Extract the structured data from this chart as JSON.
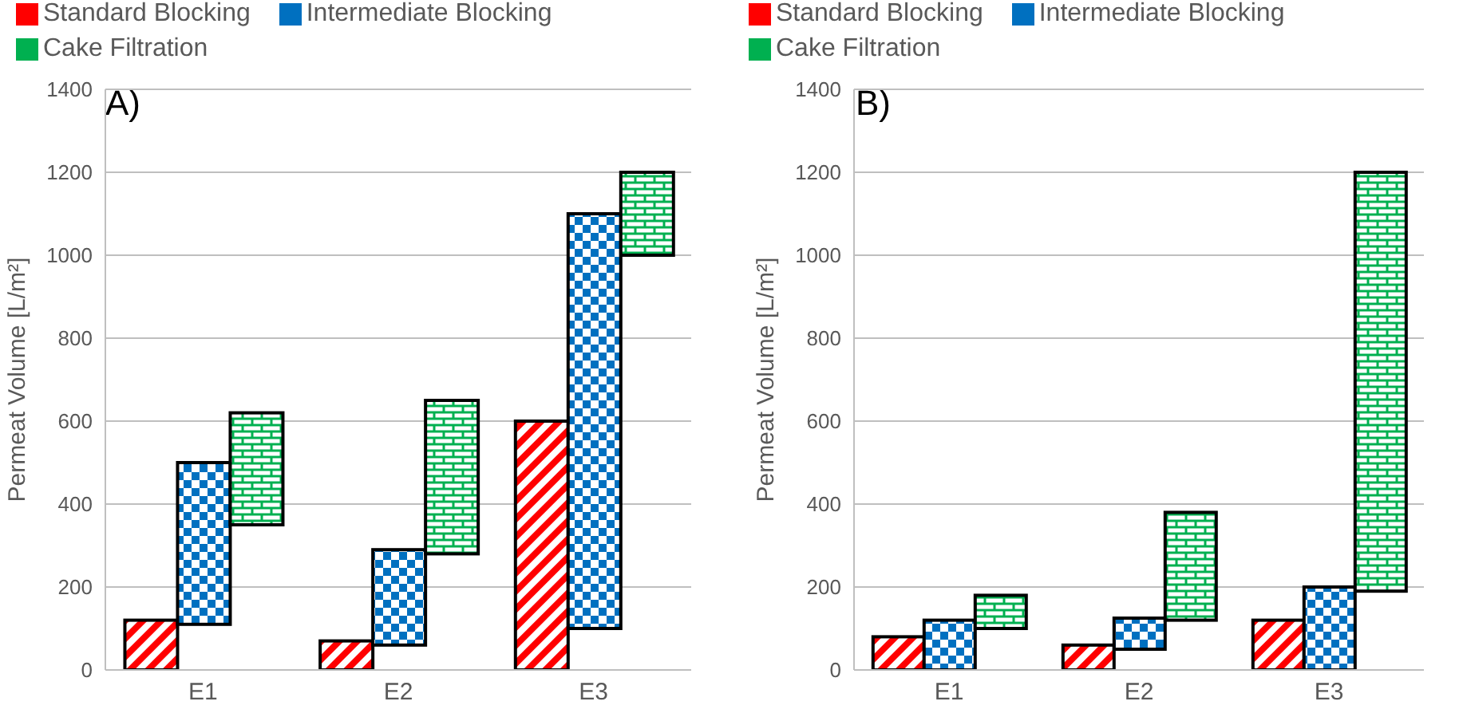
{
  "chart_data": [
    {
      "type": "bar",
      "title": "A)",
      "ylabel": "Permeat Volume [L/m²]",
      "categories": [
        "E1",
        "E2",
        "E3"
      ],
      "ylim": [
        0,
        1400
      ],
      "yticks": [
        0,
        200,
        400,
        600,
        800,
        1000,
        1200,
        1400
      ],
      "grid": "y",
      "legend": "top",
      "series": [
        {
          "name": "Standard Blocking",
          "color": "#ff0000",
          "values": [
            120,
            70,
            600
          ],
          "base": [
            0,
            0,
            0
          ]
        },
        {
          "name": "Intermediate Blocking",
          "color": "#0070c0",
          "values": [
            390,
            230,
            1000
          ],
          "base": [
            110,
            60,
            100
          ]
        },
        {
          "name": "Cake Filtration",
          "color": "#00b050",
          "values": [
            270,
            370,
            200
          ],
          "base": [
            350,
            280,
            1000
          ]
        }
      ]
    },
    {
      "type": "bar",
      "title": "B)",
      "ylabel": "Permeat Volume [L/m²]",
      "categories": [
        "E1",
        "E2",
        "E3"
      ],
      "ylim": [
        0,
        1400
      ],
      "yticks": [
        0,
        200,
        400,
        600,
        800,
        1000,
        1200,
        1400
      ],
      "grid": "y",
      "legend": "top",
      "series": [
        {
          "name": "Standard Blocking",
          "color": "#ff0000",
          "values": [
            80,
            60,
            120
          ],
          "base": [
            0,
            0,
            0
          ]
        },
        {
          "name": "Intermediate Blocking",
          "color": "#0070c0",
          "values": [
            120,
            75,
            200
          ],
          "base": [
            0,
            50,
            0
          ]
        },
        {
          "name": "Cake Filtration",
          "color": "#00b050",
          "values": [
            80,
            260,
            1010
          ],
          "base": [
            100,
            120,
            190
          ]
        }
      ]
    }
  ]
}
